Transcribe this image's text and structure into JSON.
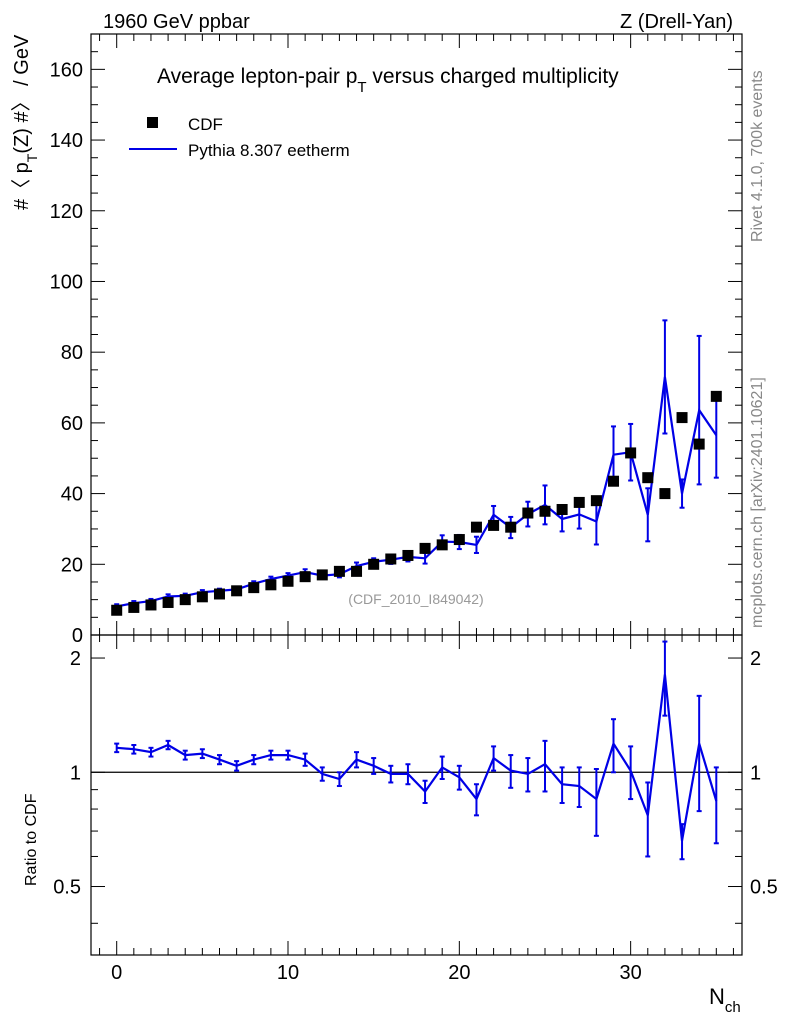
{
  "header": {
    "left": "1960 GeV ppbar",
    "right": "Z (Drell-Yan)"
  },
  "side_labels": {
    "rivet": "Rivet 4.1.0,  700k events",
    "mcplots": "mcplots.cern.ch [arXiv:2401.10621]"
  },
  "chart_data": {
    "type": "scatter",
    "title": "Average lepton-pair p_T versus charged multiplicity",
    "title_parts": {
      "pre": "Average lepton-pair p",
      "sub": "T",
      "post": " versus charged multiplicity"
    },
    "analysis_label": "(CDF_2010_I849042)",
    "xlabel": {
      "main": "N",
      "sub": "ch"
    },
    "ylabel": {
      "pre": "#〈 p",
      "sub": "T",
      "post": "(Z) #〉 / GeV"
    },
    "ratio_ylabel": "Ratio to CDF",
    "xlim": [
      -1.5,
      36.5
    ],
    "ylim": [
      0,
      170
    ],
    "ratio_ylim": [
      0.33,
      2.3
    ],
    "x_ticks": [
      0,
      10,
      20,
      30
    ],
    "y_ticks": [
      0,
      20,
      40,
      60,
      80,
      100,
      120,
      140,
      160
    ],
    "ratio_ticks": [
      0.5,
      1,
      2
    ],
    "legend": [
      {
        "name": "CDF",
        "marker": "square",
        "color": "#000000"
      },
      {
        "name": "Pythia 8.307 eetherm",
        "marker": "line",
        "color": "#0000e6"
      }
    ],
    "series": [
      {
        "name": "CDF",
        "x": [
          0,
          1,
          2,
          3,
          4,
          5,
          6,
          7,
          8,
          9,
          10,
          11,
          12,
          13,
          14,
          15,
          16,
          17,
          18,
          19,
          20,
          21,
          22,
          23,
          24,
          25,
          26,
          27,
          28,
          29,
          30,
          31,
          32,
          33,
          34,
          35
        ],
        "values": [
          7.0,
          7.8,
          8.5,
          9.2,
          10.0,
          10.8,
          11.6,
          12.5,
          13.4,
          14.2,
          15.2,
          16.5,
          17.0,
          18.0,
          18.0,
          20.0,
          21.5,
          22.5,
          24.5,
          25.5,
          27.0,
          30.5,
          31.0,
          30.5,
          34.5,
          35.0,
          35.5,
          37.5,
          38.0,
          43.5,
          51.5,
          44.5,
          40.0,
          61.5,
          54.0,
          67.5
        ]
      },
      {
        "name": "Pythia 8.307 eetherm",
        "x": [
          0,
          1,
          2,
          3,
          4,
          5,
          6,
          7,
          8,
          9,
          10,
          11,
          12,
          13,
          14,
          15,
          16,
          17,
          18,
          19,
          20,
          21,
          22,
          23,
          24,
          25,
          26,
          27,
          28,
          29,
          30,
          31,
          32,
          33,
          34,
          35
        ],
        "values": [
          8.1,
          9.0,
          9.6,
          10.9,
          11.1,
          12.1,
          12.5,
          12.9,
          14.5,
          15.8,
          16.8,
          17.8,
          16.8,
          17.2,
          19.5,
          20.7,
          21.3,
          22.1,
          21.7,
          26.4,
          26.3,
          25.5,
          34.0,
          30.4,
          34.2,
          36.8,
          32.8,
          34.1,
          32.1,
          51.0,
          51.7,
          34.0,
          73.0,
          40.0,
          63.6,
          56.5
        ],
        "errors": [
          0.6,
          0.6,
          0.6,
          0.6,
          0.6,
          0.6,
          0.6,
          0.7,
          0.7,
          0.7,
          0.7,
          0.8,
          0.8,
          0.9,
          1.0,
          1.0,
          1.2,
          1.3,
          1.5,
          1.8,
          2.0,
          2.3,
          2.5,
          3.0,
          3.5,
          5.5,
          3.5,
          4.0,
          6.5,
          8.0,
          8.0,
          7.5,
          16.0,
          4.0,
          21.0,
          12.0
        ]
      }
    ],
    "ratio": {
      "name": "Pythia 8.307 eetherm / CDF",
      "x": [
        0,
        1,
        2,
        3,
        4,
        5,
        6,
        7,
        8,
        9,
        10,
        11,
        12,
        13,
        14,
        15,
        16,
        17,
        18,
        19,
        20,
        21,
        22,
        23,
        24,
        25,
        26,
        27,
        28,
        29,
        30,
        31,
        32,
        33,
        34,
        35
      ],
      "values": [
        1.16,
        1.15,
        1.13,
        1.18,
        1.11,
        1.12,
        1.08,
        1.04,
        1.08,
        1.11,
        1.11,
        1.08,
        0.99,
        0.96,
        1.08,
        1.04,
        0.99,
        0.99,
        0.89,
        1.03,
        0.97,
        0.85,
        1.09,
        1.01,
        0.99,
        1.05,
        0.93,
        0.92,
        0.85,
        1.19,
        1.01,
        0.77,
        1.81,
        0.66,
        1.19,
        0.84
      ],
      "errors": [
        0.03,
        0.03,
        0.03,
        0.03,
        0.03,
        0.03,
        0.03,
        0.03,
        0.03,
        0.03,
        0.03,
        0.04,
        0.04,
        0.04,
        0.05,
        0.05,
        0.05,
        0.06,
        0.06,
        0.07,
        0.07,
        0.08,
        0.08,
        0.1,
        0.1,
        0.16,
        0.1,
        0.11,
        0.17,
        0.19,
        0.16,
        0.17,
        0.4,
        0.07,
        0.4,
        0.19
      ]
    }
  }
}
